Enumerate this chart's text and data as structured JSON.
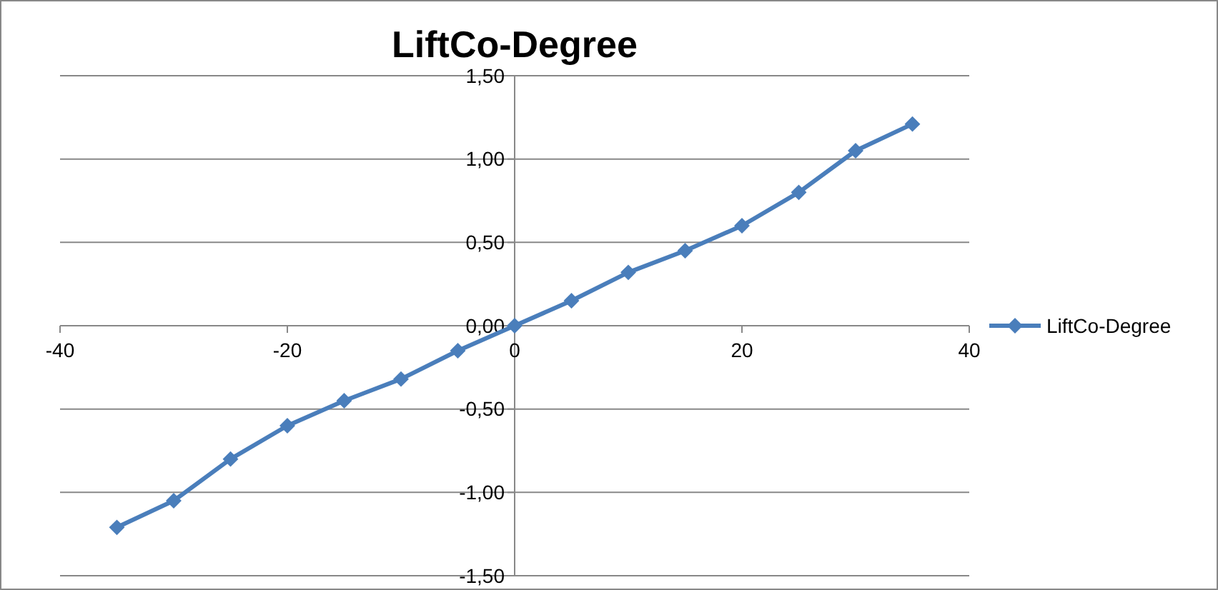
{
  "chart_data": {
    "type": "line",
    "title": "LiftCo-Degree",
    "x": [
      -35,
      -30,
      -25,
      -20,
      -15,
      -10,
      -5,
      0,
      5,
      10,
      15,
      20,
      25,
      30,
      35
    ],
    "series": [
      {
        "name": "LiftCo-Degree",
        "color": "#4a7ebb",
        "values": [
          -1.21,
          -1.05,
          -0.8,
          -0.6,
          -0.45,
          -0.32,
          -0.15,
          0,
          0.15,
          0.32,
          0.45,
          0.6,
          0.8,
          1.05,
          1.21
        ]
      }
    ],
    "xlim": [
      -40,
      40
    ],
    "xticks": [
      -40,
      -20,
      0,
      20,
      40
    ],
    "ylim": [
      -1.5,
      1.5
    ],
    "yticks": [
      {
        "value": -1.5,
        "label": "-1,50"
      },
      {
        "value": -1,
        "label": "-1,00"
      },
      {
        "value": -0.5,
        "label": "-0,50"
      },
      {
        "value": 0,
        "label": "0,00"
      },
      {
        "value": 0.5,
        "label": "0,50"
      },
      {
        "value": 1,
        "label": "1,00"
      },
      {
        "value": 1.5,
        "label": "1,50"
      }
    ],
    "grid": "y",
    "legend": "right",
    "marker": "diamond",
    "line_style": "solid"
  }
}
